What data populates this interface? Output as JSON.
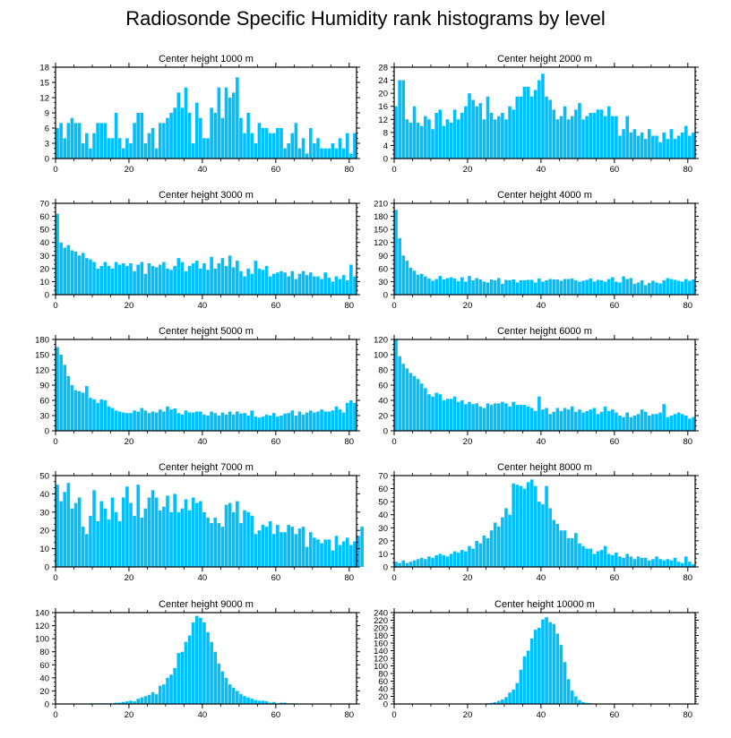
{
  "title": "Radiosonde Specific Humidity rank histograms by level",
  "style": {
    "bar_color": "#00bfff",
    "frame_color": "#000000"
  },
  "chart_data": [
    {
      "type": "bar",
      "title": "Center height 1000 m",
      "ylim": [
        0,
        18
      ],
      "yticks": [
        0,
        3,
        6,
        9,
        12,
        15,
        18
      ],
      "xlim": [
        0,
        82
      ],
      "xticks": [
        0,
        20,
        40,
        60,
        80
      ],
      "values": [
        6,
        7,
        4,
        7,
        8,
        7,
        7,
        3,
        5,
        2,
        5,
        7,
        7,
        7,
        4,
        4,
        9,
        4,
        2,
        4,
        3,
        7,
        9,
        9,
        3,
        5,
        6,
        2,
        7,
        7,
        8,
        9,
        10,
        13,
        10,
        14,
        9,
        3,
        11,
        8,
        4,
        4,
        10,
        9,
        14,
        8,
        14,
        12,
        13,
        16,
        8,
        5,
        9,
        5,
        3,
        7,
        6,
        6,
        5,
        5,
        6,
        6,
        2,
        3,
        5,
        7,
        2,
        4,
        1,
        6,
        3,
        4,
        2,
        2,
        2,
        3,
        2,
        4,
        2,
        5,
        1,
        5
      ]
    },
    {
      "type": "bar",
      "title": "Center height 2000 m",
      "ylim": [
        0,
        28
      ],
      "yticks": [
        0,
        4,
        8,
        12,
        16,
        20,
        24,
        28
      ],
      "xlim": [
        0,
        82
      ],
      "xticks": [
        0,
        20,
        40,
        60,
        80
      ],
      "values": [
        16,
        24,
        24,
        12,
        11,
        16,
        11,
        10,
        13,
        12,
        9,
        14,
        15,
        10,
        12,
        11,
        15,
        12,
        14,
        16,
        20,
        18,
        16,
        17,
        12,
        19,
        14,
        12,
        13,
        14,
        12,
        16,
        15,
        19,
        19,
        22,
        22,
        19,
        21,
        24,
        26,
        19,
        18,
        15,
        12,
        13,
        16,
        12,
        13,
        15,
        17,
        12,
        13,
        14,
        14,
        15,
        15,
        13,
        16,
        13,
        13,
        7,
        9,
        13,
        8,
        9,
        7,
        8,
        6,
        9,
        7,
        7,
        5,
        8,
        6,
        9,
        6,
        7,
        8,
        10,
        7,
        8
      ]
    },
    {
      "type": "bar",
      "title": "Center height 3000 m",
      "ylim": [
        0,
        70
      ],
      "yticks": [
        0,
        10,
        20,
        30,
        40,
        50,
        60,
        70
      ],
      "xlim": [
        0,
        82
      ],
      "xticks": [
        0,
        20,
        40,
        60,
        80
      ],
      "values": [
        62,
        40,
        36,
        38,
        34,
        33,
        30,
        32,
        28,
        27,
        25,
        20,
        22,
        25,
        22,
        20,
        25,
        23,
        24,
        22,
        24,
        18,
        23,
        25,
        16,
        24,
        22,
        21,
        23,
        25,
        20,
        19,
        22,
        28,
        25,
        18,
        22,
        24,
        26,
        20,
        24,
        19,
        29,
        20,
        24,
        28,
        22,
        30,
        21,
        26,
        18,
        14,
        20,
        16,
        26,
        20,
        19,
        22,
        14,
        16,
        17,
        18,
        17,
        14,
        18,
        12,
        16,
        18,
        15,
        17,
        14,
        14,
        12,
        17,
        13,
        10,
        14,
        12,
        15,
        11,
        23,
        14
      ]
    },
    {
      "type": "bar",
      "title": "Center height 4000 m",
      "ylim": [
        0,
        210
      ],
      "yticks": [
        0,
        30,
        60,
        90,
        120,
        150,
        180,
        210
      ],
      "xlim": [
        0,
        82
      ],
      "xticks": [
        0,
        20,
        40,
        60,
        80
      ],
      "values": [
        195,
        130,
        90,
        78,
        62,
        55,
        46,
        48,
        42,
        37,
        32,
        36,
        43,
        35,
        38,
        40,
        37,
        31,
        40,
        30,
        43,
        33,
        38,
        35,
        30,
        28,
        35,
        33,
        38,
        25,
        34,
        33,
        35,
        28,
        33,
        33,
        34,
        34,
        28,
        37,
        30,
        33,
        36,
        35,
        35,
        32,
        36,
        36,
        37,
        33,
        30,
        32,
        34,
        37,
        30,
        34,
        33,
        30,
        36,
        40,
        30,
        28,
        42,
        36,
        38,
        25,
        28,
        33,
        22,
        27,
        32,
        28,
        26,
        33,
        38,
        36,
        34,
        32,
        30,
        36,
        32,
        35
      ]
    },
    {
      "type": "bar",
      "title": "Center height 5000 m",
      "ylim": [
        0,
        180
      ],
      "yticks": [
        0,
        30,
        60,
        90,
        120,
        150,
        180
      ],
      "xlim": [
        0,
        82
      ],
      "xticks": [
        0,
        20,
        40,
        60,
        80
      ],
      "values": [
        165,
        150,
        130,
        108,
        90,
        80,
        78,
        75,
        88,
        65,
        62,
        55,
        62,
        60,
        48,
        45,
        40,
        38,
        36,
        35,
        35,
        40,
        38,
        45,
        40,
        35,
        38,
        36,
        42,
        38,
        48,
        42,
        44,
        35,
        32,
        40,
        36,
        36,
        38,
        38,
        32,
        30,
        38,
        35,
        30,
        36,
        32,
        38,
        32,
        38,
        34,
        35,
        30,
        40,
        28,
        26,
        28,
        32,
        30,
        35,
        28,
        30,
        34,
        35,
        40,
        30,
        38,
        32,
        36,
        40,
        36,
        38,
        42,
        38,
        38,
        40,
        48,
        42,
        36,
        55,
        60,
        55
      ]
    },
    {
      "type": "bar",
      "title": "Center height 6000 m",
      "ylim": [
        0,
        120
      ],
      "yticks": [
        0,
        20,
        40,
        60,
        80,
        100,
        120
      ],
      "xlim": [
        0,
        82
      ],
      "xticks": [
        0,
        20,
        40,
        60,
        80
      ],
      "values": [
        120,
        98,
        88,
        82,
        76,
        72,
        68,
        62,
        56,
        48,
        45,
        50,
        48,
        40,
        42,
        42,
        45,
        38,
        40,
        35,
        38,
        35,
        36,
        32,
        30,
        36,
        34,
        36,
        36,
        38,
        36,
        32,
        38,
        34,
        34,
        34,
        32,
        30,
        26,
        45,
        28,
        30,
        22,
        25,
        30,
        26,
        30,
        28,
        32,
        25,
        28,
        24,
        26,
        28,
        30,
        22,
        25,
        32,
        26,
        28,
        24,
        20,
        18,
        24,
        18,
        20,
        22,
        28,
        25,
        20,
        22,
        22,
        24,
        35,
        18,
        20,
        22,
        24,
        22,
        20,
        16,
        18
      ]
    },
    {
      "type": "bar",
      "title": "Center height 7000 m",
      "ylim": [
        0,
        50
      ],
      "yticks": [
        0,
        10,
        20,
        30,
        40,
        50
      ],
      "xlim": [
        0,
        82
      ],
      "xticks": [
        0,
        20,
        40,
        60,
        80
      ],
      "values": [
        45,
        36,
        41,
        46,
        32,
        35,
        38,
        22,
        18,
        28,
        42,
        25,
        36,
        32,
        26,
        38,
        30,
        25,
        38,
        44,
        35,
        28,
        45,
        27,
        32,
        38,
        42,
        38,
        31,
        33,
        39,
        30,
        40,
        30,
        32,
        37,
        31,
        38,
        35,
        36,
        30,
        27,
        24,
        27,
        24,
        22,
        34,
        35,
        30,
        36,
        24,
        31,
        30,
        28,
        18,
        20,
        23,
        22,
        25,
        18,
        23,
        19,
        19,
        23,
        22,
        18,
        21,
        22,
        11,
        19,
        16,
        15,
        13,
        15,
        15,
        9,
        17,
        12,
        14,
        16,
        12,
        14,
        17,
        22
      ]
    },
    {
      "type": "bar",
      "title": "Center height 8000 m",
      "ylim": [
        0,
        70
      ],
      "yticks": [
        0,
        10,
        20,
        30,
        40,
        50,
        60,
        70
      ],
      "xlim": [
        0,
        82
      ],
      "xticks": [
        0,
        20,
        40,
        60,
        80
      ],
      "values": [
        4,
        3,
        5,
        3,
        4,
        5,
        6,
        7,
        6,
        8,
        7,
        9,
        10,
        9,
        8,
        10,
        12,
        11,
        13,
        12,
        16,
        14,
        20,
        18,
        24,
        22,
        28,
        34,
        31,
        38,
        45,
        40,
        64,
        63,
        62,
        60,
        65,
        67,
        62,
        50,
        48,
        62,
        45,
        36,
        33,
        28,
        28,
        22,
        22,
        26,
        18,
        16,
        14,
        14,
        10,
        12,
        13,
        16,
        10,
        9,
        11,
        8,
        7,
        10,
        8,
        6,
        8,
        7,
        7,
        5,
        6,
        8,
        6,
        5,
        6,
        5,
        7,
        4,
        3,
        8,
        4,
        2
      ]
    },
    {
      "type": "bar",
      "title": "Center height 9000 m",
      "ylim": [
        0,
        140
      ],
      "yticks": [
        0,
        20,
        40,
        60,
        80,
        100,
        120,
        140
      ],
      "xlim": [
        0,
        82
      ],
      "xticks": [
        0,
        20,
        40,
        60,
        80
      ],
      "values": [
        0,
        0,
        0,
        0,
        0,
        0,
        0,
        0,
        0,
        1,
        1,
        1,
        1,
        1,
        1,
        1,
        2,
        2,
        3,
        4,
        5,
        4,
        8,
        10,
        12,
        14,
        18,
        15,
        28,
        30,
        40,
        45,
        55,
        78,
        80,
        95,
        105,
        125,
        135,
        132,
        125,
        110,
        95,
        80,
        62,
        50,
        40,
        30,
        25,
        20,
        15,
        12,
        10,
        8,
        6,
        5,
        5,
        4,
        2,
        3,
        1,
        2,
        2,
        1,
        1,
        1,
        0,
        0,
        0,
        0,
        0,
        0,
        0,
        0,
        0,
        0,
        0,
        0,
        0,
        0,
        0,
        0
      ]
    },
    {
      "type": "bar",
      "title": "Center height 10000 m",
      "ylim": [
        0,
        240
      ],
      "yticks": [
        0,
        20,
        40,
        60,
        80,
        100,
        120,
        140,
        160,
        180,
        200,
        220,
        240
      ],
      "xlim": [
        0,
        82
      ],
      "xticks": [
        0,
        20,
        40,
        60,
        80
      ],
      "values": [
        0,
        0,
        0,
        0,
        0,
        0,
        0,
        0,
        0,
        0,
        0,
        0,
        0,
        0,
        0,
        0,
        0,
        0,
        0,
        0,
        0,
        0,
        0,
        0,
        1,
        2,
        3,
        5,
        8,
        12,
        18,
        30,
        38,
        55,
        90,
        125,
        140,
        172,
        195,
        200,
        222,
        228,
        215,
        210,
        185,
        155,
        110,
        65,
        35,
        20,
        10,
        5,
        3,
        2,
        1,
        1,
        0,
        0,
        0,
        0,
        0,
        0,
        0,
        0,
        0,
        0,
        0,
        0,
        0,
        0,
        0,
        0,
        0,
        0,
        0,
        0,
        0,
        0,
        0,
        0,
        0,
        0
      ]
    }
  ]
}
